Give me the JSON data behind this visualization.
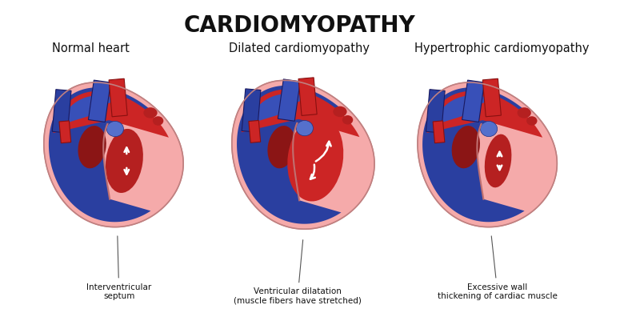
{
  "title": "CARDIOMYOPATHY",
  "title_fontsize": 20,
  "title_fontweight": "bold",
  "labels": [
    "Normal heart",
    "Dilated cardiomyopathy",
    "Hypertrophic cardiomyopathy"
  ],
  "label_fontsize": 10.5,
  "annotations": [
    "Interventricular\nseptum",
    "Ventricular dilatation\n(muscle fibers have stretched)",
    "Excessive wall\nthickening of cardiac muscle"
  ],
  "annotation_fontsize": 7.5,
  "bg_color": "#ffffff",
  "pink_outer": "#F5AAAA",
  "pink_light": "#F8C0C0",
  "blue_dark": "#2A3FA0",
  "blue_med": "#3850B8",
  "blue_light": "#5570CC",
  "red_dark": "#8B1515",
  "red_mid": "#B52020",
  "red_bright": "#CC2525",
  "pink_inner": "#E88888",
  "sep_color": "#C07070"
}
